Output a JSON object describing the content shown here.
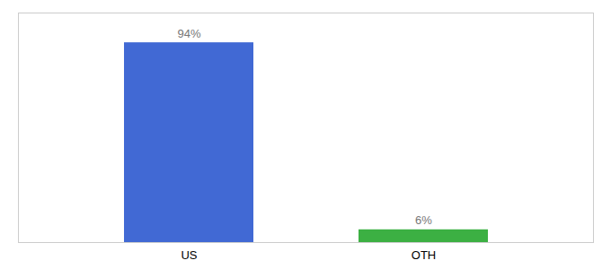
{
  "chart_data": {
    "type": "bar",
    "categories": [
      "US",
      "OTH"
    ],
    "values": [
      94,
      6
    ],
    "value_labels": [
      "94%",
      "6%"
    ],
    "colors": [
      "#4169d4",
      "#3cb043"
    ],
    "ylim": [
      0,
      108
    ],
    "data_labels": true,
    "tick_labels": "x"
  }
}
